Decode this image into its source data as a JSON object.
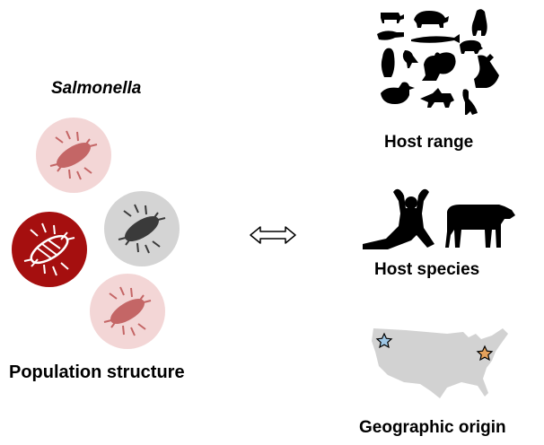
{
  "title": "Salmonella",
  "labels": {
    "population_structure": "Population structure",
    "host_range": "Host range",
    "host_species": "Host species",
    "geographic_origin": "Geographic origin"
  },
  "colors": {
    "bacterium_light_bg": "#f3d6d6",
    "bacterium_light_fg": "#c46666",
    "bacterium_dark_bg": "#a50f0f",
    "bacterium_dark_fg": "#ffffff",
    "bacterium_gray_bg": "#d4d4d4",
    "bacterium_gray_fg": "#3a3a3a",
    "map_fill": "#d2d2d2",
    "star_west": "#9ec7e6",
    "star_east": "#e6a25c",
    "silhouette": "#000000"
  },
  "icons": {
    "connector": "double-arrow-icon",
    "host_range": "animal-silhouettes-icon",
    "host_species": [
      "human-silhouette-icon",
      "cow-silhouette-icon"
    ],
    "geographic": "us-map-icon"
  }
}
